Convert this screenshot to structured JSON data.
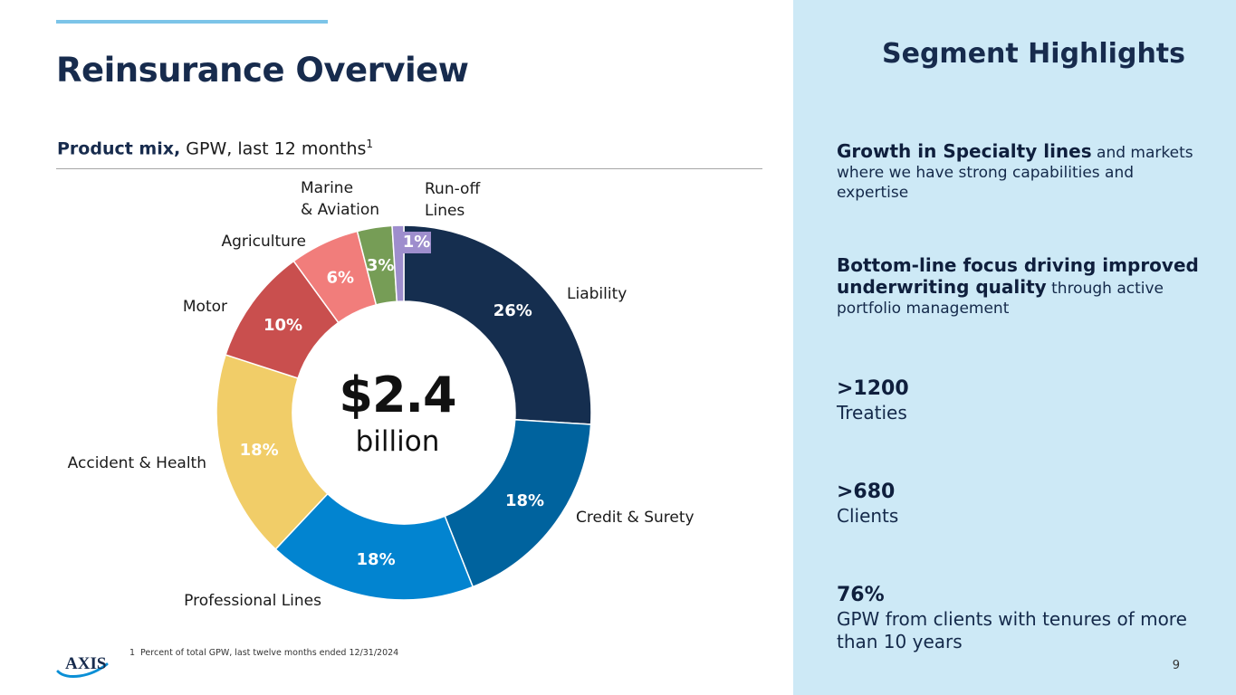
{
  "header": {
    "title": "Reinsurance Overview"
  },
  "subtitle": {
    "bold": "Product mix,",
    "rest": " GPW, last 12 months",
    "footnote_ref": "1"
  },
  "chart_data": {
    "type": "pie",
    "variant": "donut",
    "title": "Product mix, GPW, last 12 months",
    "center_value": "$2.4",
    "center_unit": "billion",
    "slices": [
      {
        "name": "Liability",
        "label": "Liability",
        "value": 26,
        "display": "26%",
        "color": "#152e4f"
      },
      {
        "name": "Credit & Surety",
        "label": "Credit & Surety",
        "value": 18,
        "display": "18%",
        "color": "#00639e"
      },
      {
        "name": "Professional Lines",
        "label": "Professional Lines",
        "value": 18,
        "display": "18%",
        "color": "#0284d0"
      },
      {
        "name": "Accident & Health",
        "label": "Accident & Health",
        "value": 18,
        "display": "18%",
        "color": "#f1cd68"
      },
      {
        "name": "Motor",
        "label": "Motor",
        "value": 10,
        "display": "10%",
        "color": "#c94f4e"
      },
      {
        "name": "Agriculture",
        "label": "Agriculture",
        "value": 6,
        "display": "6%",
        "color": "#f17d7b"
      },
      {
        "name": "Marine & Aviation",
        "label": "Marine\n& Aviation",
        "value": 3,
        "display": "3%",
        "color": "#769d56"
      },
      {
        "name": "Run-off Lines",
        "label": "Run-off\nLines",
        "value": 1,
        "display": "1%",
        "color": "#9e8ecd"
      }
    ]
  },
  "footnote": {
    "number": "1",
    "text": "Percent of total GPW, last twelve months ended 12/31/2024"
  },
  "logo": {
    "text": "AXIS"
  },
  "panel": {
    "title": "Segment Highlights",
    "highlight1": {
      "bold": "Growth in Specialty lines",
      "rest": " and markets where we have strong capabilities and expertise"
    },
    "highlight2": {
      "bold": "Bottom-line focus driving improved underwriting quality",
      "rest": " through active portfolio management"
    },
    "stats": [
      {
        "value": ">1200",
        "label": "Treaties"
      },
      {
        "value": ">680",
        "label": "Clients"
      },
      {
        "value": "76%",
        "label": "GPW from clients with tenures of more than 10 years"
      }
    ]
  },
  "page_number": "9",
  "colors": {
    "title": "#172b4d",
    "accent_line": "#7cc4e8",
    "panel_bg": "#cde9f6"
  }
}
